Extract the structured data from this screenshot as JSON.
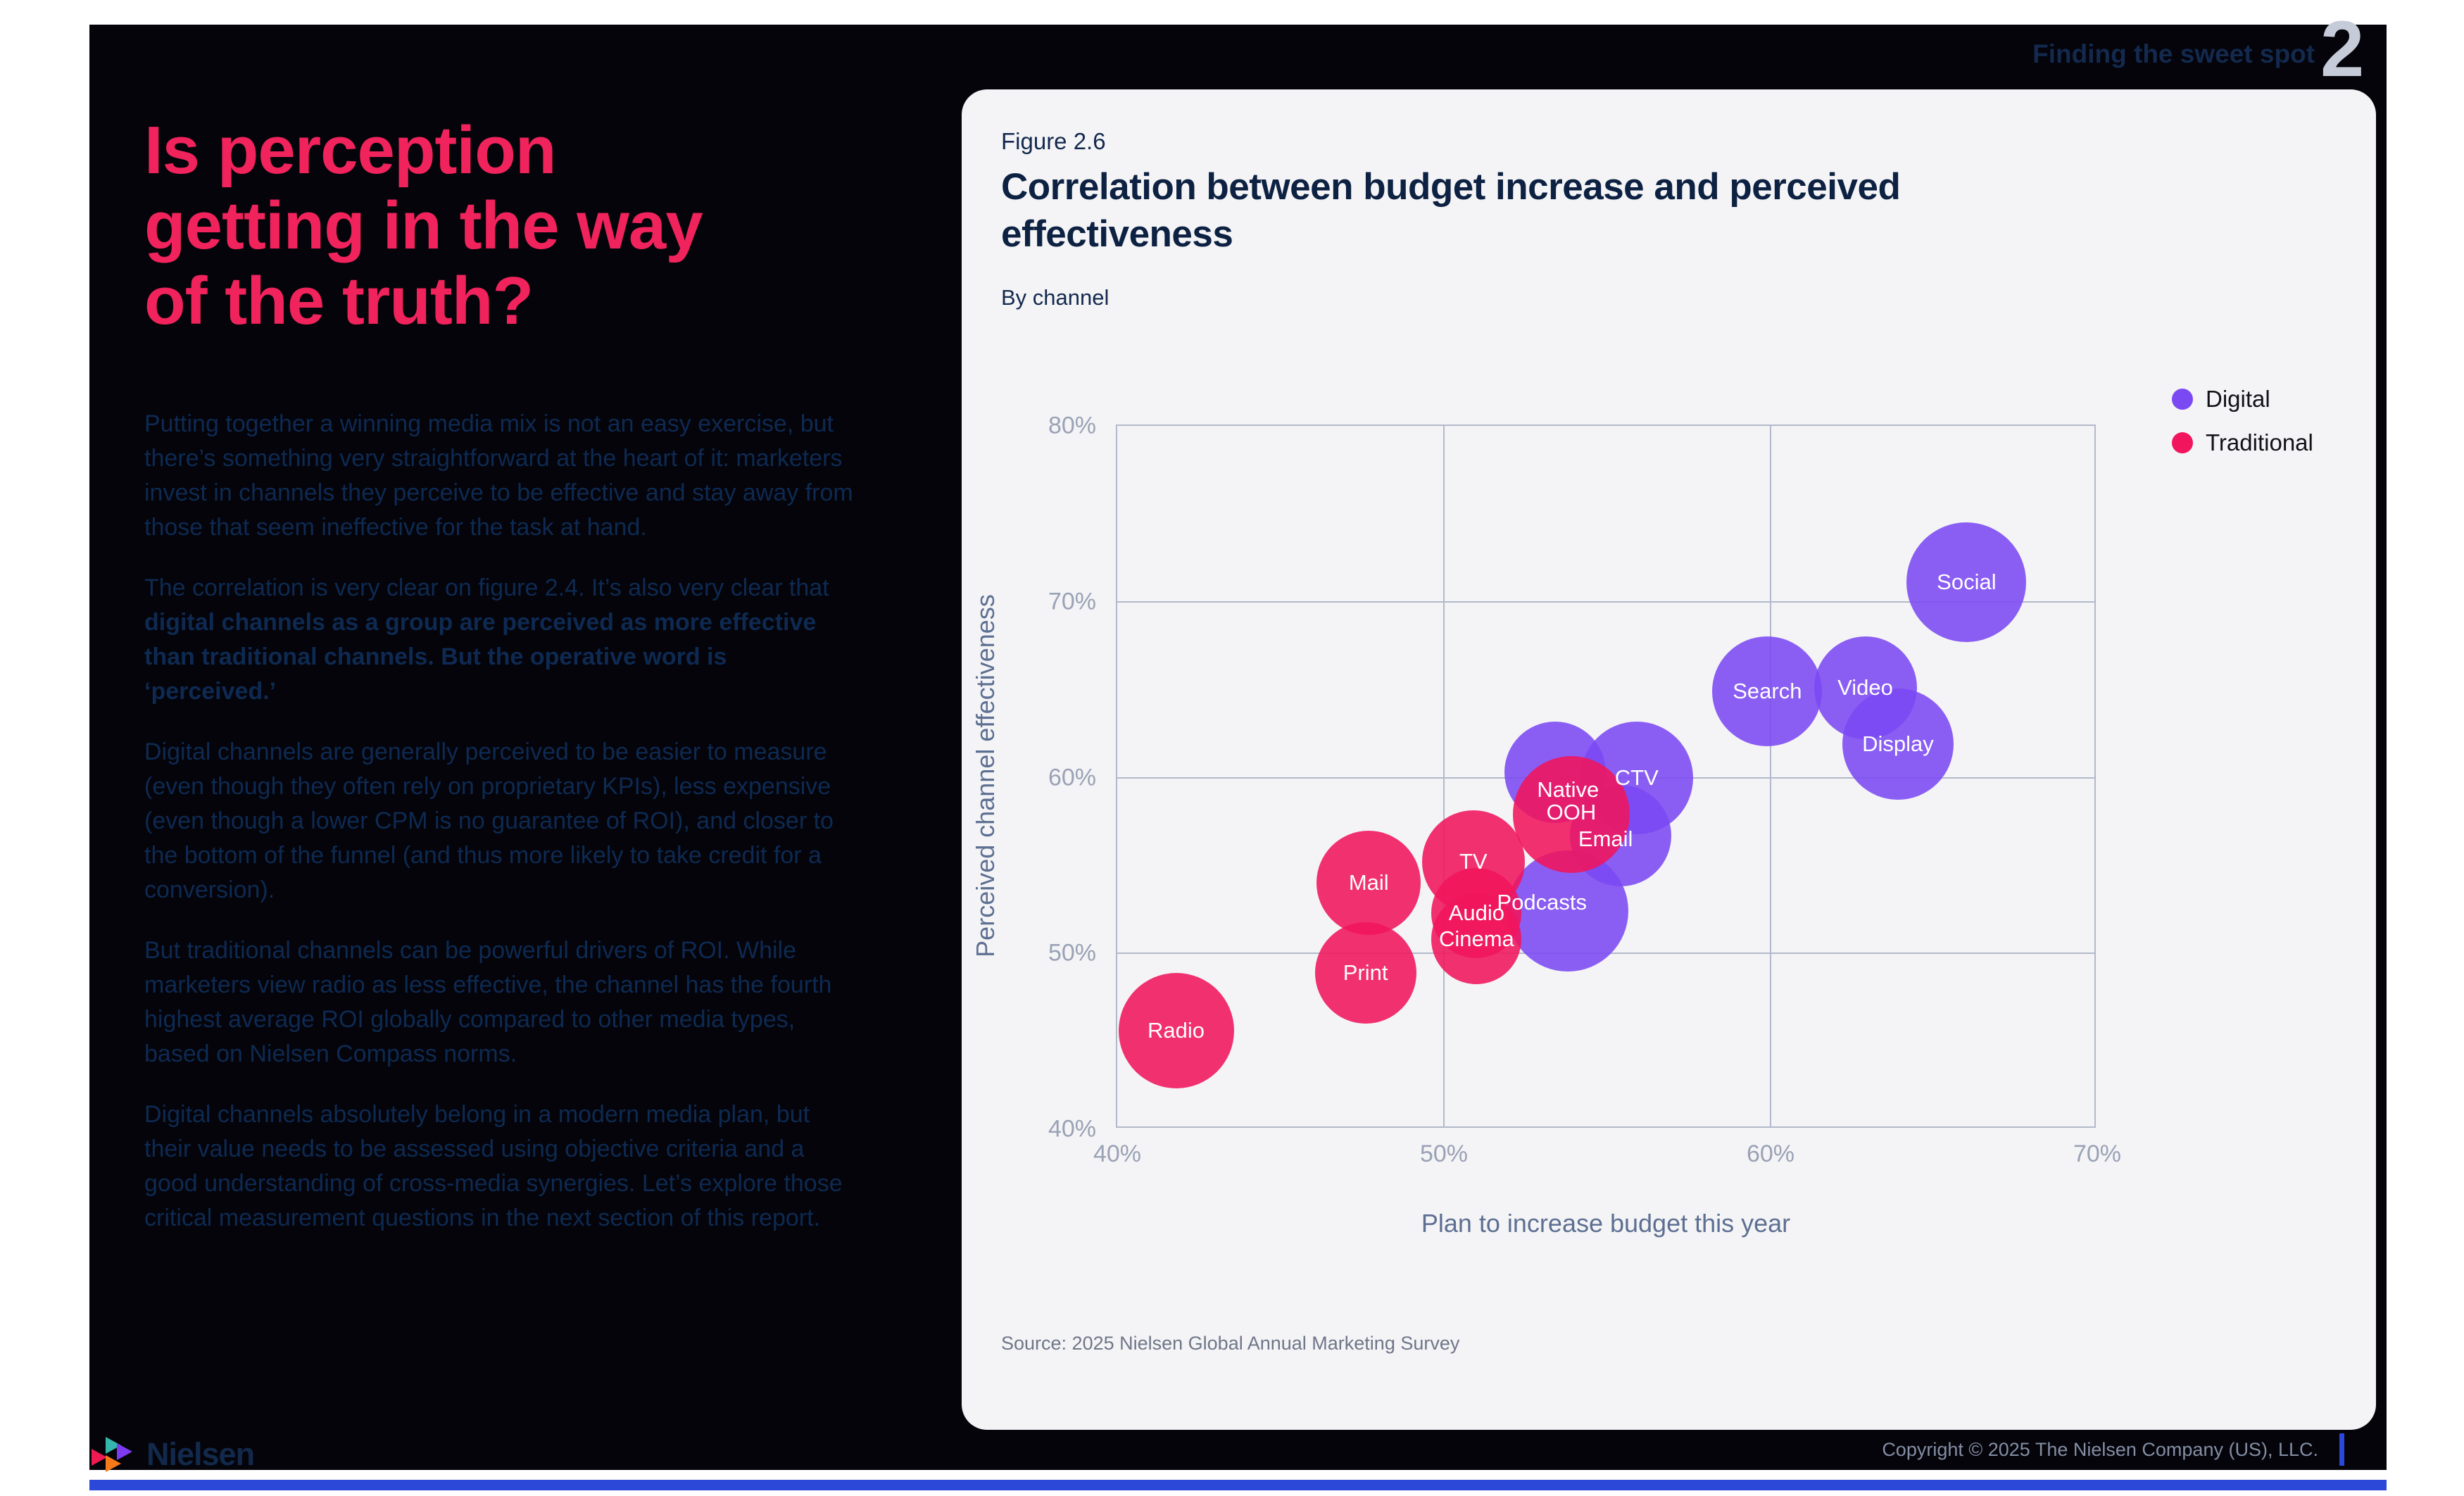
{
  "header": {
    "section_label": "Finding the sweet spot",
    "page_number": "2"
  },
  "left_panel": {
    "title_lines": [
      "Is perception",
      "getting in the way",
      "of the truth?"
    ],
    "paragraphs": [
      {
        "runs": [
          {
            "text": "Putting together a winning media mix is not an easy exercise, but there’s something very straightforward at the heart of it: marketers invest in channels they perceive to be effective and stay away from those that seem ineffective for the task at hand.",
            "bold": false
          }
        ]
      },
      {
        "runs": [
          {
            "text": "The correlation is very clear on figure 2.4. It’s also very clear that ",
            "bold": false
          },
          {
            "text": "digital channels as a group are perceived as more effective than traditional channels. But the operative word is ‘perceived.’",
            "bold": true
          }
        ]
      },
      {
        "runs": [
          {
            "text": "Digital channels are generally perceived to be easier to measure (even though they often rely on proprietary KPIs), less expensive (even though a lower CPM is no guarantee of ROI), and closer to the bottom of the funnel (and thus more likely to take credit for a conversion).",
            "bold": false
          }
        ]
      },
      {
        "runs": [
          {
            "text": "But traditional channels can be powerful drivers of ROI. While marketers view radio as less effective, the channel has the fourth highest average ROI globally compared to other media types, based on Nielsen Compass norms.",
            "bold": false
          }
        ]
      },
      {
        "runs": [
          {
            "text": "Digital channels absolutely belong in a modern media plan, but their value needs to be assessed using objective criteria and a good understanding of cross-media synergies. Let’s explore those critical measurement questions in the next section of this report.",
            "bold": false
          }
        ]
      }
    ]
  },
  "figure": {
    "label": "Figure 2.6",
    "title": "Correlation between budget increase and perceived effectiveness",
    "subtitle": "By channel",
    "source": "Source: 2025 Nielsen Global Annual Marketing Survey"
  },
  "chart_data": {
    "type": "scatter",
    "title": "Correlation between budget increase and perceived effectiveness",
    "xlabel": "Plan to increase budget this year",
    "ylabel": "Perceived channel effectiveness",
    "xlim": [
      40,
      70
    ],
    "ylim": [
      40,
      80
    ],
    "grid": true,
    "legend_position": "top-right",
    "x_ticks": [
      {
        "value": 40,
        "label": "40%"
      },
      {
        "value": 50,
        "label": "50%"
      },
      {
        "value": 60,
        "label": "60%"
      },
      {
        "value": 70,
        "label": "70%"
      }
    ],
    "y_ticks": [
      {
        "value": 80,
        "label": "80%"
      },
      {
        "value": 70,
        "label": "70%"
      },
      {
        "value": 60,
        "label": "60%"
      },
      {
        "value": 50,
        "label": "50%"
      },
      {
        "value": 40,
        "label": "40%"
      }
    ],
    "x_gridlines": [
      50,
      60
    ],
    "y_gridlines": [
      50,
      60,
      70
    ],
    "legend": [
      {
        "label": "Digital",
        "key": "digital"
      },
      {
        "label": "Traditional",
        "key": "traditional"
      }
    ],
    "series": [
      {
        "label": "Native",
        "group": "digital",
        "x": 53.4,
        "y": 60.3,
        "r": 72,
        "label_x": 53.8,
        "label_y": 59.3
      },
      {
        "label": "Email",
        "group": "digital",
        "x": 55.4,
        "y": 56.7,
        "r": 72,
        "label_x": 54.95,
        "label_y": 56.5
      },
      {
        "label": "CTV",
        "group": "digital",
        "x": 55.9,
        "y": 60.0,
        "r": 80
      },
      {
        "label": "Podcasts",
        "group": "digital",
        "x": 53.8,
        "y": 52.4,
        "r": 86,
        "label_x": 53.0,
        "label_y": 52.9
      },
      {
        "label": "Search",
        "group": "digital",
        "x": 59.9,
        "y": 64.9,
        "r": 78
      },
      {
        "label": "Video",
        "group": "digital",
        "x": 62.9,
        "y": 65.1,
        "r": 73
      },
      {
        "label": "Display",
        "group": "digital",
        "x": 63.9,
        "y": 61.9,
        "r": 79
      },
      {
        "label": "Social",
        "group": "digital",
        "x": 66.0,
        "y": 71.1,
        "r": 85
      },
      {
        "label": "Radio",
        "group": "traditional",
        "x": 41.8,
        "y": 45.6,
        "r": 82
      },
      {
        "label": "Print",
        "group": "traditional",
        "x": 47.6,
        "y": 48.9,
        "r": 72
      },
      {
        "label": "Mail",
        "group": "traditional",
        "x": 47.7,
        "y": 54.0,
        "r": 74
      },
      {
        "label": "TV",
        "group": "traditional",
        "x": 50.9,
        "y": 55.2,
        "r": 73
      },
      {
        "label": "Audio",
        "group": "traditional",
        "x": 51.0,
        "y": 52.3,
        "r": 64
      },
      {
        "label": "Cinema",
        "group": "traditional",
        "x": 51.0,
        "y": 50.8,
        "r": 64
      },
      {
        "label": "OOH",
        "group": "traditional",
        "x": 53.9,
        "y": 57.9,
        "r": 83,
        "label_x": 53.9,
        "label_y": 58.0
      }
    ]
  },
  "footer": {
    "brand": "Nielsen",
    "copyright": "Copyright © 2025 The Nielsen Company (US), LLC."
  },
  "colors": {
    "accent_pink": "#F0235C",
    "digital": "#7B49F2",
    "traditional": "#F0155C",
    "page_black": "#04040A",
    "card_bg": "#F4F4F6",
    "navy_text": "#0E2A52",
    "blue_bar": "#2B48D8"
  }
}
